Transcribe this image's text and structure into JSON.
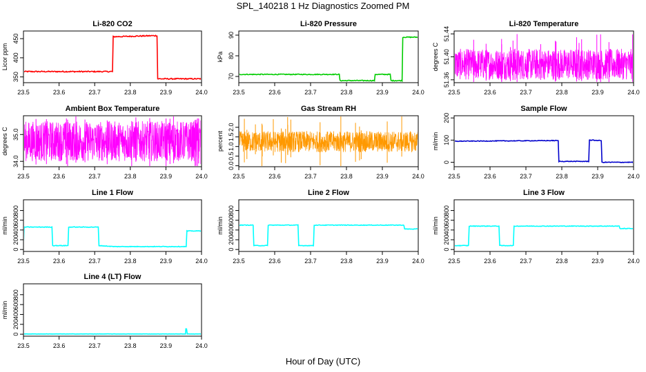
{
  "title": "SPL_140218 1 Hz Diagnostics Zoomed PM",
  "xlabel": "Hour of Day (UTC)",
  "chart_data": [
    {
      "type": "line",
      "title": "Li-820 CO2",
      "ylabel": "Licor ppm",
      "color": "#ff0000",
      "xlim": [
        23.5,
        24.0
      ],
      "ylim": [
        335,
        470
      ],
      "x_ticks": [
        "23.5",
        "23.6",
        "23.7",
        "23.8",
        "23.9",
        "24.0"
      ],
      "y_ticks": [
        {
          "value": 350,
          "label": "350"
        },
        {
          "value": 400,
          "label": "400"
        },
        {
          "value": 450,
          "label": "450"
        }
      ],
      "noise": 1.5,
      "series": [
        {
          "x": [
            23.5,
            23.75,
            23.752,
            23.875,
            23.877,
            24.0
          ],
          "y": [
            364,
            364,
            455,
            458,
            345,
            345
          ]
        }
      ]
    },
    {
      "type": "line",
      "title": "Li-820 Pressure",
      "ylabel": "kPa",
      "color": "#00cc00",
      "xlim": [
        23.5,
        24.0
      ],
      "ylim": [
        67,
        92
      ],
      "x_ticks": [
        "23.5",
        "23.6",
        "23.7",
        "23.8",
        "23.9",
        "24.0"
      ],
      "y_ticks": [
        {
          "value": 70,
          "label": "70"
        },
        {
          "value": 80,
          "label": "80"
        },
        {
          "value": 90,
          "label": "90"
        }
      ],
      "noise": 0.2,
      "series": [
        {
          "x": [
            23.5,
            23.78,
            23.782,
            23.878,
            23.88,
            23.922,
            23.924,
            23.955,
            23.957,
            24.0
          ],
          "y": [
            71,
            71,
            68,
            68,
            71,
            71,
            68,
            68,
            89,
            89
          ]
        }
      ]
    },
    {
      "type": "line",
      "title": "Li-820 Temperature",
      "ylabel": "degrees C",
      "color": "#ff00ff",
      "xlim": [
        23.5,
        24.0
      ],
      "ylim": [
        51.355,
        51.445
      ],
      "x_ticks": [
        "23.5",
        "23.6",
        "23.7",
        "23.8",
        "23.9",
        "24.0"
      ],
      "y_ticks": [
        {
          "value": 51.36,
          "label": "51.36"
        },
        {
          "value": 51.4,
          "label": "51.40"
        },
        {
          "value": 51.44,
          "label": "51.44"
        }
      ],
      "band": [
        51.36,
        51.414
      ],
      "series": []
    },
    {
      "type": "line",
      "title": "Ambient Box Temperature",
      "ylabel": "degrees C",
      "color": "#ff00ff",
      "xlim": [
        23.5,
        24.0
      ],
      "ylim": [
        33.8,
        35.7
      ],
      "x_ticks": [
        "23.5",
        "23.6",
        "23.7",
        "23.8",
        "23.9",
        "24.0"
      ],
      "y_ticks": [
        {
          "value": 34.0,
          "label": "34.0"
        },
        {
          "value": 35.0,
          "label": "35.0"
        }
      ],
      "band": [
        34.0,
        35.5
      ],
      "series": []
    },
    {
      "type": "line",
      "title": "Gas Stream RH",
      "ylabel": "percent",
      "color": "#ff9900",
      "xlim": [
        23.5,
        24.0
      ],
      "ylim": [
        -0.05,
        2.6
      ],
      "x_ticks": [
        "23.5",
        "23.6",
        "23.7",
        "23.8",
        "23.9",
        "24.0"
      ],
      "y_ticks": [
        {
          "value": 0.0,
          "label": "0.0"
        },
        {
          "value": 0.5,
          "label": "0.5"
        },
        {
          "value": 1.0,
          "label": "1.0"
        },
        {
          "value": 1.5,
          "label": "1.5"
        },
        {
          "value": 2.0,
          "label": "2.0"
        }
      ],
      "band": [
        0.7,
        1.8
      ],
      "series": []
    },
    {
      "type": "line",
      "title": "Sample Flow",
      "ylabel": "ml/min",
      "color": "#0000cc",
      "xlim": [
        23.5,
        24.0
      ],
      "ylim": [
        -20,
        210
      ],
      "x_ticks": [
        "23.5",
        "23.6",
        "23.7",
        "23.8",
        "23.9",
        "24.0"
      ],
      "y_ticks": [
        {
          "value": 0,
          "label": "0"
        },
        {
          "value": 100,
          "label": "100"
        },
        {
          "value": 200,
          "label": "200"
        }
      ],
      "noise": 1.5,
      "series": [
        {
          "x": [
            23.5,
            23.79,
            23.792,
            23.875,
            23.877,
            23.91,
            23.912,
            24.0
          ],
          "y": [
            95,
            98,
            4,
            4,
            100,
            98,
            0,
            0
          ]
        }
      ]
    },
    {
      "type": "line",
      "title": "Line 1 Flow",
      "ylabel": "ml/min",
      "color": "#00ffff",
      "xlim": [
        23.5,
        24.0
      ],
      "ylim": [
        -40,
        1020
      ],
      "x_ticks": [
        "23.5",
        "23.6",
        "23.7",
        "23.8",
        "23.9",
        "24.0"
      ],
      "y_ticks": [
        {
          "value": 0,
          "label": "0"
        },
        {
          "value": 200,
          "label": "200"
        },
        {
          "value": 400,
          "label": "400"
        },
        {
          "value": 600,
          "label": "600"
        },
        {
          "value": 800,
          "label": "800"
        }
      ],
      "noise": 6,
      "series": [
        {
          "x": [
            23.5,
            23.502,
            23.58,
            23.582,
            23.625,
            23.627,
            23.71,
            23.712,
            23.755,
            23.957,
            23.959,
            24.0
          ],
          "y": [
            80,
            460,
            460,
            80,
            80,
            460,
            460,
            80,
            60,
            60,
            380,
            380
          ]
        }
      ]
    },
    {
      "type": "line",
      "title": "Line 2 Flow",
      "ylabel": "ml/min",
      "color": "#00ffff",
      "xlim": [
        23.5,
        24.0
      ],
      "ylim": [
        -40,
        1020
      ],
      "x_ticks": [
        "23.5",
        "23.6",
        "23.7",
        "23.8",
        "23.9",
        "24.0"
      ],
      "y_ticks": [
        {
          "value": 0,
          "label": "0"
        },
        {
          "value": 200,
          "label": "200"
        },
        {
          "value": 400,
          "label": "400"
        },
        {
          "value": 600,
          "label": "600"
        },
        {
          "value": 800,
          "label": "800"
        }
      ],
      "noise": 6,
      "series": [
        {
          "x": [
            23.5,
            23.54,
            23.542,
            23.58,
            23.582,
            23.665,
            23.667,
            23.708,
            23.71,
            23.96,
            23.962,
            24.0
          ],
          "y": [
            500,
            500,
            80,
            80,
            500,
            500,
            80,
            80,
            500,
            500,
            420,
            420
          ]
        }
      ]
    },
    {
      "type": "line",
      "title": "Line 3 Flow",
      "ylabel": "ml/min",
      "color": "#00ffff",
      "xlim": [
        23.5,
        24.0
      ],
      "ylim": [
        -40,
        1020
      ],
      "x_ticks": [
        "23.5",
        "23.6",
        "23.7",
        "23.8",
        "23.9",
        "24.0"
      ],
      "y_ticks": [
        {
          "value": 0,
          "label": "0"
        },
        {
          "value": 200,
          "label": "200"
        },
        {
          "value": 400,
          "label": "400"
        },
        {
          "value": 600,
          "label": "600"
        },
        {
          "value": 800,
          "label": "800"
        }
      ],
      "noise": 6,
      "series": [
        {
          "x": [
            23.5,
            23.502,
            23.54,
            23.542,
            23.625,
            23.627,
            23.665,
            23.667,
            23.96,
            23.962,
            24.0
          ],
          "y": [
            80,
            80,
            80,
            480,
            480,
            80,
            80,
            480,
            480,
            430,
            430
          ]
        }
      ]
    },
    {
      "type": "line",
      "title": "Line 4 (LT) Flow",
      "ylabel": "ml/min",
      "color": "#00ffff",
      "xlim": [
        23.5,
        24.0
      ],
      "ylim": [
        -40,
        1020
      ],
      "x_ticks": [
        "23.5",
        "23.6",
        "23.7",
        "23.8",
        "23.9",
        "24.0"
      ],
      "y_ticks": [
        {
          "value": 0,
          "label": "0"
        },
        {
          "value": 200,
          "label": "200"
        },
        {
          "value": 400,
          "label": "400"
        },
        {
          "value": 600,
          "label": "600"
        },
        {
          "value": 800,
          "label": "800"
        }
      ],
      "noise": 2,
      "series": [
        {
          "x": [
            23.5,
            23.955,
            23.956,
            23.958,
            23.96,
            24.0
          ],
          "y": [
            5,
            5,
            110,
            110,
            5,
            5
          ]
        }
      ]
    }
  ]
}
